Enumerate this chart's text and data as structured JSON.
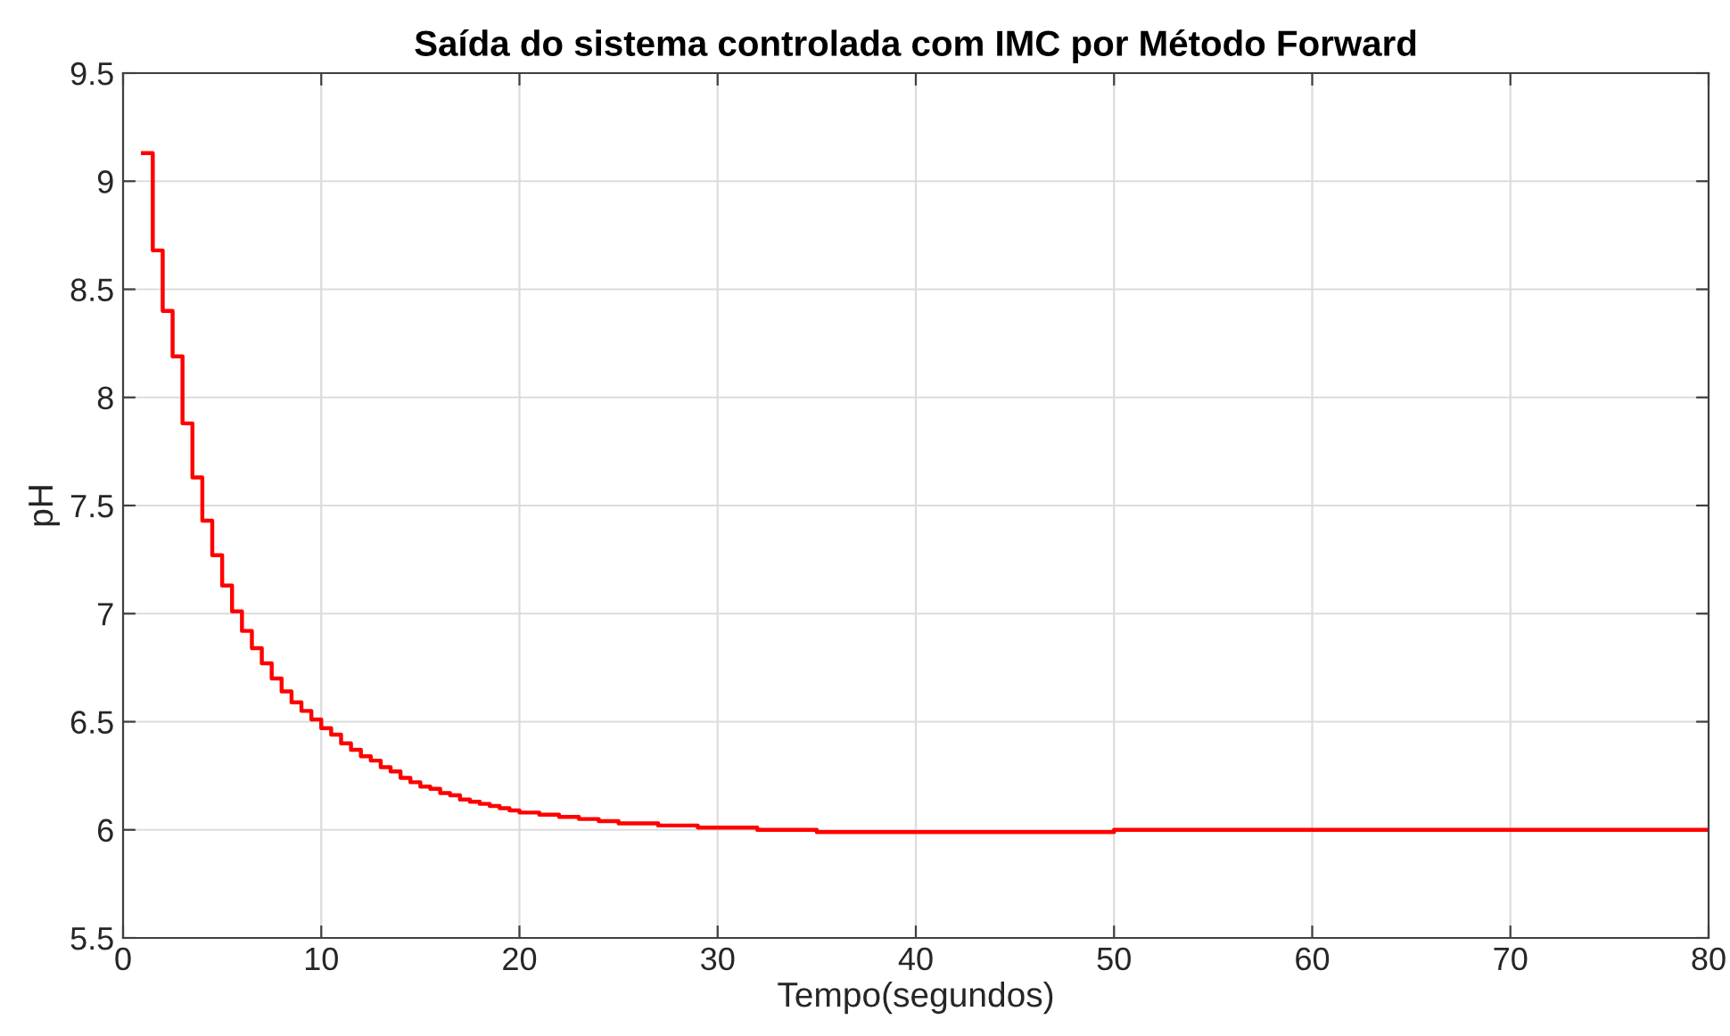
{
  "chart_data": {
    "type": "step",
    "title": "Saída do sistema controlada com IMC por Método Forward",
    "xlabel": "Tempo(segundos)",
    "ylabel": "pH",
    "x": [
      1.0,
      1.5,
      2.0,
      2.5,
      3.0,
      3.5,
      4.0,
      4.5,
      5.0,
      5.5,
      6.0,
      6.5,
      7.0,
      7.5,
      8.0,
      8.5,
      9.0,
      9.5,
      10.0,
      10.5,
      11.0,
      11.5,
      12.0,
      12.5,
      13.0,
      13.5,
      14.0,
      14.5,
      15.0,
      15.5,
      16.0,
      16.5,
      17.0,
      17.5,
      18.0,
      18.5,
      19.0,
      19.5,
      20.0,
      21,
      22,
      23,
      24,
      25,
      26,
      27,
      28,
      29,
      30,
      32,
      35,
      40,
      45,
      50,
      60,
      70,
      80
    ],
    "values": [
      9.13,
      8.68,
      8.4,
      8.19,
      7.88,
      7.63,
      7.43,
      7.27,
      7.13,
      7.01,
      6.92,
      6.84,
      6.77,
      6.7,
      6.64,
      6.59,
      6.55,
      6.51,
      6.47,
      6.44,
      6.4,
      6.37,
      6.34,
      6.32,
      6.29,
      6.27,
      6.24,
      6.22,
      6.2,
      6.19,
      6.17,
      6.16,
      6.14,
      6.13,
      6.12,
      6.11,
      6.1,
      6.09,
      6.08,
      6.07,
      6.06,
      6.05,
      6.04,
      6.03,
      6.03,
      6.02,
      6.02,
      6.01,
      6.01,
      6.0,
      5.99,
      5.99,
      5.99,
      6.0,
      6.0,
      6.0,
      6.0
    ],
    "color": "#ff0000",
    "xlim": [
      0,
      80
    ],
    "xticks": [
      0,
      10,
      20,
      30,
      40,
      50,
      60,
      70,
      80
    ],
    "ylim": [
      5.5,
      9.5
    ],
    "yticks": [
      5.5,
      6,
      6.5,
      7,
      7.5,
      8,
      8.5,
      9,
      9.5
    ],
    "grid": true
  }
}
